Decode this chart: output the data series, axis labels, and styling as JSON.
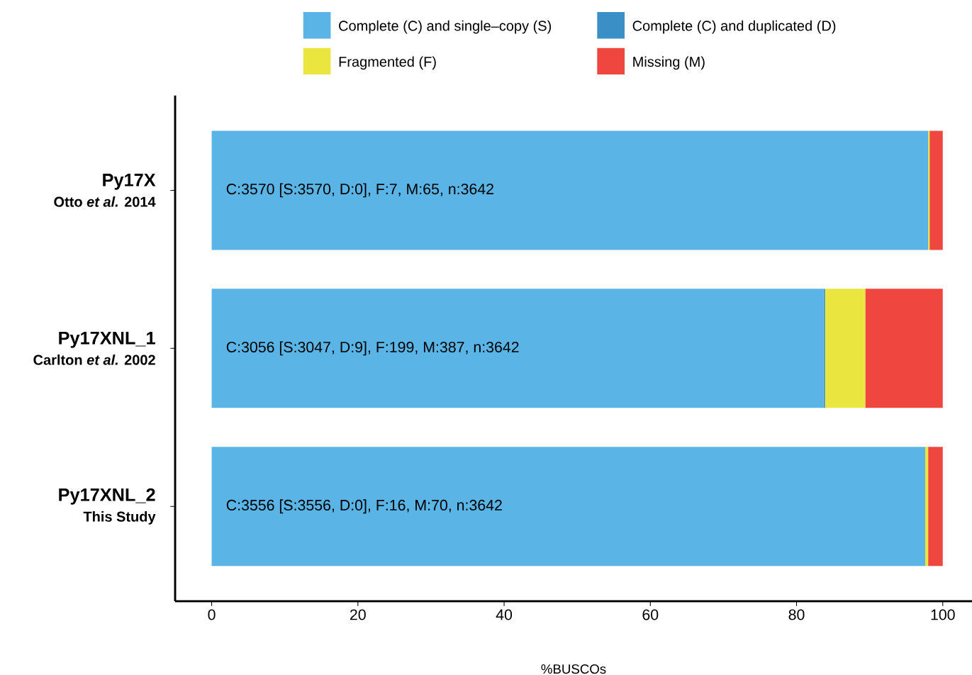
{
  "chart_data": {
    "type": "bar",
    "orientation": "horizontal",
    "stacked": true,
    "xlabel": "%BUSCOs",
    "categories": [
      "Py17X",
      "Py17XNL_1",
      "Py17XNL_2"
    ],
    "series": [
      {
        "name": "Complete (C) and single–copy (S)",
        "color": "#5ab4e5",
        "values": [
          98.0,
          83.7,
          97.6
        ]
      },
      {
        "name": "Complete (C) and duplicated (D)",
        "color": "#3a8fc7",
        "values": [
          0,
          0.2,
          0
        ]
      },
      {
        "name": "Fragmented (F)",
        "color": "#ebe53f",
        "values": [
          0.2,
          5.5,
          0.4
        ]
      },
      {
        "name": "Missing (M)",
        "color": "#ef4640",
        "values": [
          1.8,
          10.6,
          2.0
        ]
      }
    ],
    "xlim": [
      -5,
      104
    ],
    "xticks": [
      0,
      20,
      40,
      60,
      80,
      100
    ],
    "legend": "top",
    "annotations": [
      "Otto *et al.* 2014",
      "Carlton *et al.* 2002",
      "This Study",
      "C:3570 [S:3570, D:0], F:7, M:65, n:3642",
      "C:3056 [S:3047, D:9], F:199, M:387, n:3642",
      "C:3556 [S:3556, D:0], F:16, M:70, n:3642"
    ]
  }
}
